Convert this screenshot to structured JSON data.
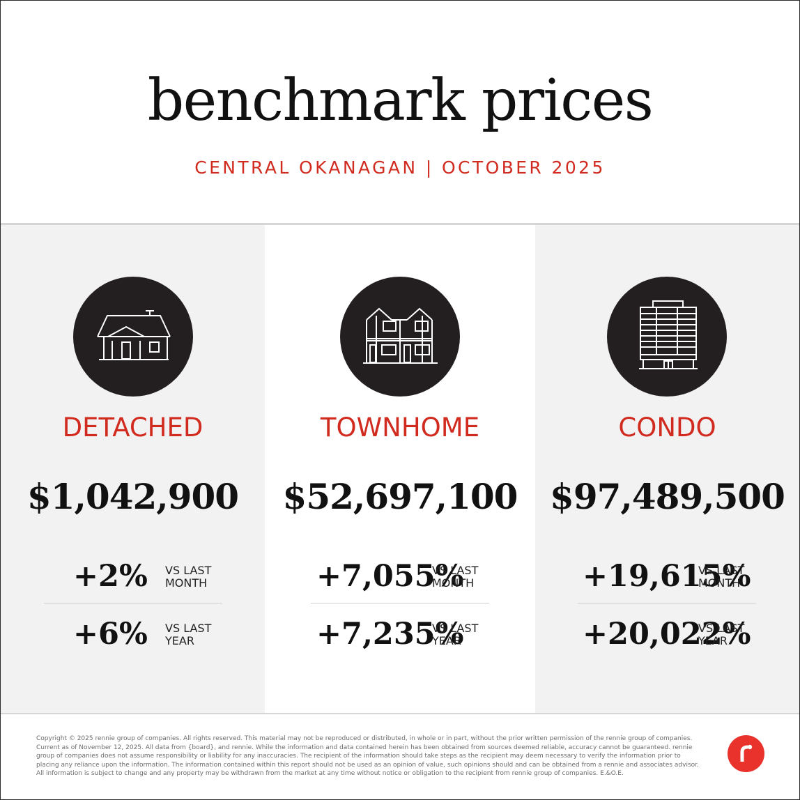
{
  "header": {
    "title": "benchmark prices",
    "subtitle": "CENTRAL OKANAGAN | OCTOBER 2025"
  },
  "colors": {
    "accent": "#d12b20",
    "circle": "#231f20",
    "panel_gray": "#f2f2f2",
    "logo": "#e8322b"
  },
  "categories": [
    {
      "icon": "house-icon",
      "label": "DETACHED",
      "price": "$1,042,900",
      "month_change": "+2%",
      "month_label_1": "VS LAST",
      "month_label_2": "MONTH",
      "year_change": "+6%",
      "year_label_1": "VS LAST",
      "year_label_2": "YEAR"
    },
    {
      "icon": "townhome-icon",
      "label": "TOWNHOME",
      "price": "$52,697,100",
      "month_change": "+7,055%",
      "month_label_1": "VS LAST",
      "month_label_2": "MONTH",
      "year_change": "+7,235%",
      "year_label_1": "VS LAST",
      "year_label_2": "YEAR"
    },
    {
      "icon": "condo-building-icon",
      "label": "CONDO",
      "price": "$97,489,500",
      "month_change": "+19,615%",
      "month_label_1": "VS LAST",
      "month_label_2": "MONTH",
      "year_change": "+20,022%",
      "year_label_1": "VS LAST",
      "year_label_2": "YEAR"
    }
  ],
  "footer": {
    "disclaimer": "Copyright © 2025 rennie group of companies. All rights reserved. This material may not be reproduced or distributed, in whole or in part, without the prior written permission of the rennie group of companies. Current as of November 12, 2025. All data from {board}, and rennie. While the information and data contained herein has been obtained from sources deemed reliable, accuracy cannot be guaranteed. rennie group of companies does not assume responsibility or liability for any inaccuracies. The recipient of the information should take steps as the recipient may deem necessary to verify the information prior to placing any reliance upon the information. The information contained within this report should not be used as an opinion of value, such opinions should and can be obtained from a rennie and associates advisor. All information is subject to change and any property may be withdrawn from the market at any time without notice or obligation to the recipient from rennie group of companies. E.&O.E.",
    "logo": "rennie-logo-icon"
  }
}
